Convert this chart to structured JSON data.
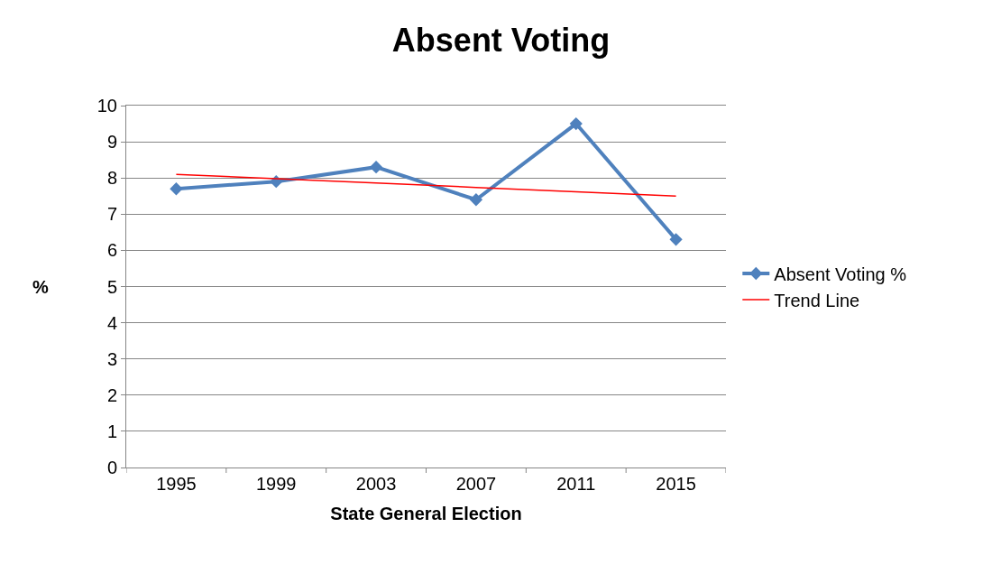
{
  "chart_data": {
    "type": "line",
    "title": "Absent Voting",
    "xlabel": "State General Election",
    "ylabel": "%",
    "categories": [
      "1995",
      "1999",
      "2003",
      "2007",
      "2011",
      "2015"
    ],
    "series": [
      {
        "name": "Absent Voting %",
        "color": "#4f81bd",
        "values": [
          7.7,
          7.9,
          8.3,
          7.4,
          9.5,
          6.3
        ],
        "marker": "diamond",
        "line_style": "solid"
      },
      {
        "name": "Trend Line",
        "color": "#ff0000",
        "type": "line",
        "values": [
          8.1,
          7.98,
          7.86,
          7.74,
          7.62,
          7.5
        ],
        "marker": "none",
        "line_style": "solid"
      }
    ],
    "ylim": [
      0,
      10
    ],
    "yticks": [
      0,
      1,
      2,
      3,
      4,
      5,
      6,
      7,
      8,
      9,
      10
    ],
    "grid": "y",
    "legend": "right"
  }
}
